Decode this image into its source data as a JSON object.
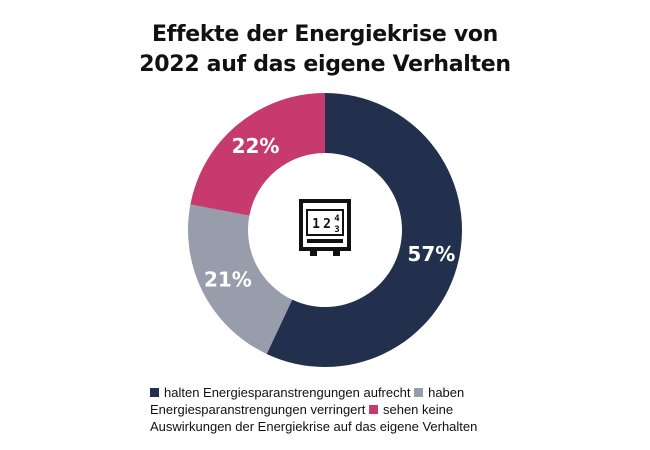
{
  "title_lines": [
    "Effekte der Energiekrise von",
    "2022 auf das eigene Verhalten"
  ],
  "colors": {
    "navy": "#22304d",
    "gray": "#979dab",
    "pink": "#c73a6d",
    "icon": "#111111",
    "label": "#ffffff"
  },
  "center_icon": "meter-icon",
  "center_icon_digits": [
    "1",
    "2",
    "4",
    "3"
  ],
  "chart_data": {
    "type": "pie",
    "variant": "donut",
    "title": "Effekte der Energiekrise von 2022 auf das eigene Verhalten",
    "categories": [
      "halten Energiesparanstrengungen aufrecht",
      "haben Energiesparanstrengungen verringert",
      "sehen keine Auswirkungen der Energiekrise auf das eigene Verhalten"
    ],
    "values": [
      57,
      21,
      22
    ],
    "labels": [
      "57%",
      "21%",
      "22%"
    ],
    "unit": "%",
    "legend_position": "bottom"
  }
}
